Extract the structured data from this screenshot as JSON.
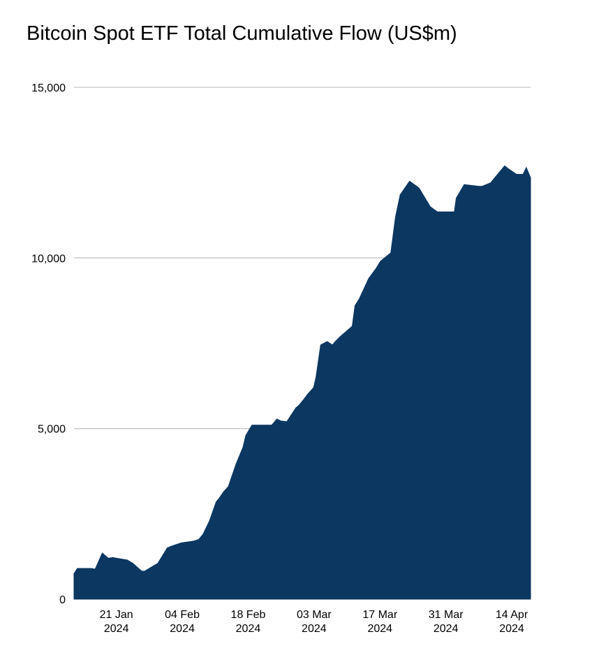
{
  "chart_data": {
    "type": "area",
    "title": "Bitcoin Spot ETF Total Cumulative Flow (US$m)",
    "xlabel": "",
    "ylabel": "",
    "ylim": [
      0,
      15000
    ],
    "y_ticks": [
      {
        "value": 0,
        "label": "0"
      },
      {
        "value": 5000,
        "label": "5,000"
      },
      {
        "value": 10000,
        "label": "10,000"
      },
      {
        "value": 15000,
        "label": "15,000"
      }
    ],
    "x_range_days": [
      0,
      97
    ],
    "x_ticks": [
      {
        "day": 9,
        "line1": "21 Jan",
        "line2": "2024"
      },
      {
        "day": 23,
        "line1": "04 Feb",
        "line2": "2024"
      },
      {
        "day": 37,
        "line1": "18 Feb",
        "line2": "2024"
      },
      {
        "day": 51,
        "line1": "03 Mar",
        "line2": "2024"
      },
      {
        "day": 65,
        "line1": "17 Mar",
        "line2": "2024"
      },
      {
        "day": 79,
        "line1": "31 Mar",
        "line2": "2024"
      },
      {
        "day": 93,
        "line1": "14 Apr",
        "line2": "2024"
      }
    ],
    "gridlines": true,
    "color": "#0b3761",
    "series": [
      {
        "name": "Total Cumulative Flow",
        "x": [
          0,
          0.7,
          3.7,
          4.5,
          6.0,
          7.3,
          8.2,
          11.3,
          12.5,
          13.9,
          14.4,
          15.0,
          17.8,
          19.8,
          20.6,
          22.8,
          25.4,
          26.5,
          27.4,
          28.8,
          30.2,
          30.8,
          31.8,
          32.8,
          34.4,
          35.9,
          36.5,
          37.8,
          38.4,
          39.0,
          39.7,
          40.6,
          42.0,
          43.1,
          44.0,
          45.2,
          47.1,
          47.9,
          48.8,
          49.6,
          50.9,
          51.4,
          52.4,
          53.8,
          54.9,
          55.5,
          56.6,
          59.1,
          59.7,
          60.6,
          62.6,
          64.2,
          65.1,
          67.3,
          68.3,
          69.3,
          71.3,
          72.3,
          73.3,
          75.7,
          77.2,
          79.1,
          80.8,
          81.2,
          82.9,
          86.0,
          86.7,
          88.5,
          90.0,
          91.5,
          92.4,
          94.0,
          95.4,
          96.1,
          97.0
        ],
        "values": [
          750,
          900,
          900,
          880,
          1350,
          1200,
          1220,
          1150,
          1050,
          880,
          820,
          820,
          1050,
          1500,
          1550,
          1650,
          1700,
          1750,
          1900,
          2300,
          2850,
          2950,
          3150,
          3300,
          3950,
          4450,
          4800,
          5100,
          5100,
          5100,
          5100,
          5100,
          5100,
          5280,
          5220,
          5200,
          5600,
          5700,
          5850,
          6000,
          6200,
          6500,
          7450,
          7550,
          7450,
          7550,
          7700,
          8000,
          8600,
          8800,
          9400,
          9700,
          9900,
          10150,
          11200,
          11850,
          12250,
          12150,
          12050,
          11500,
          11350,
          11350,
          11350,
          11750,
          12150,
          12100,
          12100,
          12200,
          12450,
          12700,
          12600,
          12450,
          12450,
          12650,
          12350
        ]
      }
    ]
  }
}
